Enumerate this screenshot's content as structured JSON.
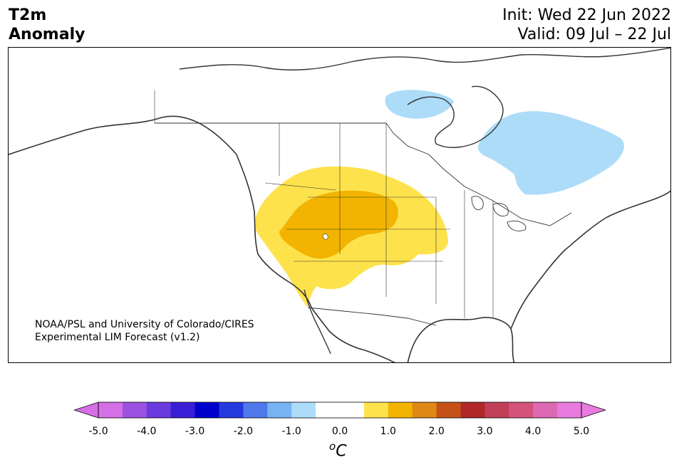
{
  "title": {
    "line1": "T2m",
    "line2": "Anomaly"
  },
  "init": "Init: Wed 22 Jun 2022",
  "valid": "Valid: 09 Jul – 22 Jul",
  "credit": {
    "line1": "NOAA/PSL and University of Colorado/CIRES",
    "line2": "Experimental LIM Forecast (v1.2)"
  },
  "colorbar": {
    "unit_base": "C",
    "unit_superscript": "o",
    "ticks": [
      "-5.0",
      "-4.0",
      "-3.0",
      "-2.0",
      "-1.0",
      "0.0",
      "1.0",
      "2.0",
      "3.0",
      "4.0",
      "5.0"
    ],
    "colors": [
      "#d56fe6",
      "#9b52e0",
      "#6a3adf",
      "#3a1ed6",
      "#0000cc",
      "#2439dd",
      "#4f78ea",
      "#77b2f2",
      "#addcf9",
      "#ffffff",
      "#ffffff",
      "#fde24c",
      "#f2b400",
      "#df8815",
      "#c45218",
      "#b0282a",
      "#c13f57",
      "#d3537a",
      "#dd69b2",
      "#e87bdd"
    ],
    "under_color": "#d56fe6",
    "over_color": "#e87bdd"
  },
  "anomaly_colors": {
    "warm_light": "#fde24c",
    "warm_strong": "#f2b400",
    "cool_light": "#addcf9"
  }
}
